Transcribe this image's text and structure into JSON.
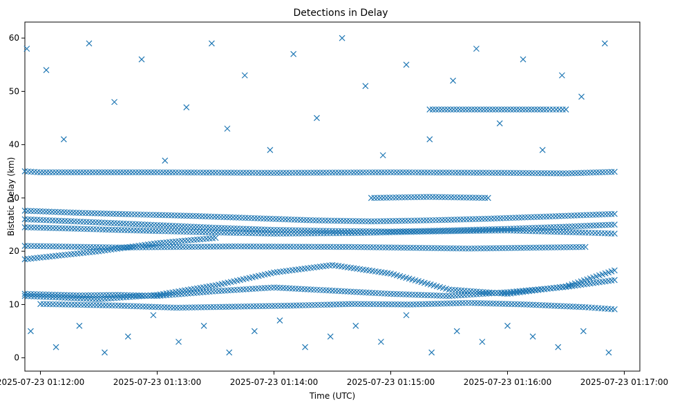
{
  "chart_data": {
    "type": "scatter",
    "title": "Detections in Delay",
    "xlabel": "Time (UTC)",
    "ylabel": "Bistatic Delay (km)",
    "marker": "x",
    "color": "#1f77b4",
    "xlim_seconds": [
      -8,
      308
    ],
    "ylim": [
      -2.5,
      63
    ],
    "x_ticks_seconds": [
      0,
      60,
      120,
      180,
      240,
      300
    ],
    "x_tick_labels": [
      "2025-07-23 01:12:00",
      "2025-07-23 01:13:00",
      "2025-07-23 01:14:00",
      "2025-07-23 01:15:00",
      "2025-07-23 01:16:00",
      "2025-07-23 01:17:00"
    ],
    "y_ticks": [
      0,
      10,
      20,
      30,
      40,
      50,
      60
    ],
    "y_tick_labels": [
      "0",
      "10",
      "20",
      "30",
      "40",
      "50",
      "60"
    ],
    "series": [
      {
        "name": "track-12-16",
        "points": [
          [
            -8,
            12.0
          ],
          [
            20,
            11.7
          ],
          [
            40,
            11.8
          ],
          [
            60,
            11.6
          ],
          [
            90,
            12.5
          ],
          [
            120,
            13.2
          ],
          [
            150,
            12.6
          ],
          [
            180,
            12.0
          ],
          [
            210,
            11.6
          ],
          [
            240,
            12.3
          ],
          [
            270,
            13.3
          ],
          [
            295,
            14.6
          ]
        ]
      },
      {
        "name": "track-12-17",
        "points": [
          [
            -8,
            11.6
          ],
          [
            30,
            11.0
          ],
          [
            60,
            11.8
          ],
          [
            90,
            13.6
          ],
          [
            120,
            16.0
          ],
          [
            150,
            17.4
          ],
          [
            180,
            15.8
          ],
          [
            210,
            12.8
          ],
          [
            240,
            12.0
          ],
          [
            270,
            13.4
          ],
          [
            295,
            16.4
          ]
        ]
      },
      {
        "name": "track-10-9",
        "points": [
          [
            0,
            10.1
          ],
          [
            40,
            9.8
          ],
          [
            70,
            9.4
          ],
          [
            100,
            9.6
          ],
          [
            130,
            9.8
          ],
          [
            160,
            10.1
          ],
          [
            190,
            10.0
          ],
          [
            220,
            10.3
          ],
          [
            250,
            10.0
          ],
          [
            280,
            9.5
          ],
          [
            295,
            9.1
          ]
        ]
      },
      {
        "name": "track-27-25",
        "points": [
          [
            -8,
            27.6
          ],
          [
            20,
            27.2
          ],
          [
            50,
            26.9
          ],
          [
            80,
            26.6
          ],
          [
            110,
            26.2
          ],
          [
            140,
            25.8
          ],
          [
            170,
            25.6
          ],
          [
            200,
            25.8
          ],
          [
            230,
            26.1
          ],
          [
            260,
            26.5
          ],
          [
            295,
            27.0
          ]
        ]
      },
      {
        "name": "track-26-24",
        "points": [
          [
            -8,
            26.0
          ],
          [
            30,
            25.4
          ],
          [
            60,
            24.9
          ],
          [
            90,
            24.4
          ],
          [
            120,
            24.0
          ],
          [
            150,
            23.8
          ],
          [
            180,
            23.7
          ],
          [
            210,
            23.9
          ],
          [
            240,
            24.2
          ],
          [
            270,
            24.6
          ],
          [
            295,
            25.0
          ]
        ]
      },
      {
        "name": "track-24-23",
        "points": [
          [
            -8,
            24.5
          ],
          [
            40,
            24.0
          ],
          [
            80,
            23.6
          ],
          [
            120,
            23.3
          ],
          [
            160,
            23.4
          ],
          [
            200,
            23.7
          ],
          [
            240,
            23.9
          ],
          [
            280,
            23.5
          ],
          [
            295,
            23.3
          ]
        ]
      },
      {
        "name": "band-46",
        "points": [
          [
            200,
            46.6
          ],
          [
            220,
            46.6
          ],
          [
            240,
            46.6
          ],
          [
            260,
            46.6
          ],
          [
            270,
            46.6
          ]
        ]
      },
      {
        "name": "band-35",
        "points": [
          [
            -8,
            35.0
          ],
          [
            0,
            34.8
          ],
          [
            60,
            34.8
          ],
          [
            120,
            34.7
          ],
          [
            180,
            34.8
          ],
          [
            240,
            34.7
          ],
          [
            270,
            34.6
          ],
          [
            295,
            34.9
          ]
        ]
      },
      {
        "name": "band-21",
        "points": [
          [
            -8,
            21.0
          ],
          [
            40,
            20.7
          ],
          [
            100,
            20.9
          ],
          [
            160,
            20.8
          ],
          [
            220,
            20.5
          ],
          [
            280,
            20.8
          ]
        ]
      },
      {
        "name": "rising-18-22",
        "points": [
          [
            -8,
            18.5
          ],
          [
            30,
            20.0
          ],
          [
            60,
            21.5
          ],
          [
            90,
            22.5
          ]
        ]
      },
      {
        "name": "band-30",
        "points": [
          [
            170,
            30.0
          ],
          [
            200,
            30.2
          ],
          [
            230,
            30.0
          ]
        ]
      },
      {
        "name": "noise",
        "points": [
          [
            -7,
            58
          ],
          [
            3,
            54
          ],
          [
            12,
            41
          ],
          [
            25,
            59
          ],
          [
            38,
            48
          ],
          [
            52,
            56
          ],
          [
            64,
            37
          ],
          [
            75,
            47
          ],
          [
            88,
            59
          ],
          [
            96,
            43
          ],
          [
            105,
            53
          ],
          [
            118,
            39
          ],
          [
            130,
            57
          ],
          [
            142,
            45
          ],
          [
            155,
            60
          ],
          [
            167,
            51
          ],
          [
            176,
            38
          ],
          [
            188,
            55
          ],
          [
            200,
            41
          ],
          [
            212,
            52
          ],
          [
            224,
            58
          ],
          [
            236,
            44
          ],
          [
            248,
            56
          ],
          [
            258,
            39
          ],
          [
            268,
            53
          ],
          [
            278,
            49
          ],
          [
            290,
            59
          ],
          [
            -5,
            5
          ],
          [
            8,
            2
          ],
          [
            20,
            6
          ],
          [
            33,
            1
          ],
          [
            45,
            4
          ],
          [
            58,
            8
          ],
          [
            71,
            3
          ],
          [
            84,
            6
          ],
          [
            97,
            1
          ],
          [
            110,
            5
          ],
          [
            123,
            7
          ],
          [
            136,
            2
          ],
          [
            149,
            4
          ],
          [
            162,
            6
          ],
          [
            175,
            3
          ],
          [
            188,
            8
          ],
          [
            201,
            1
          ],
          [
            214,
            5
          ],
          [
            227,
            3
          ],
          [
            240,
            6
          ],
          [
            253,
            4
          ],
          [
            266,
            2
          ],
          [
            279,
            5
          ],
          [
            292,
            1
          ]
        ]
      }
    ]
  }
}
